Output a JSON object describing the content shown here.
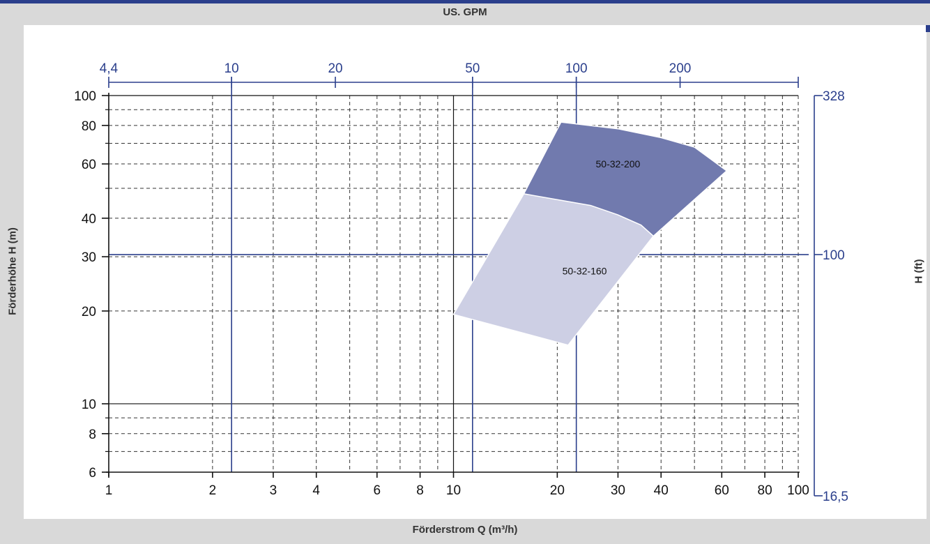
{
  "chart_data": {
    "type": "area",
    "title": "",
    "xlabel": "Förderstrom Q (m³/h)",
    "ylabel": "Förderhöhe H (m)",
    "x2label": "US. GPM",
    "y2label": "H (ft)",
    "xscale": "log",
    "yscale": "log",
    "xlim": [
      1,
      100
    ],
    "ylim": [
      6,
      100
    ],
    "x_ticks": [
      1,
      2,
      3,
      4,
      6,
      8,
      10,
      20,
      30,
      40,
      60,
      80,
      100
    ],
    "y_ticks": [
      6,
      8,
      10,
      20,
      30,
      40,
      60,
      80,
      100
    ],
    "x2_ticks": [
      "4,4",
      "10",
      "20",
      "50",
      "100",
      "200"
    ],
    "y2_ticks": [
      "16,5",
      "100",
      "328"
    ],
    "grid": true,
    "series": [
      {
        "name": "50-32-200",
        "points": [
          [
            16,
            48
          ],
          [
            20.5,
            82
          ],
          [
            30,
            78
          ],
          [
            40,
            73
          ],
          [
            50,
            68
          ],
          [
            62,
            57
          ],
          [
            38,
            35
          ]
        ]
      },
      {
        "name": "50-32-160",
        "points": [
          [
            16,
            48
          ],
          [
            25,
            44
          ],
          [
            30,
            41
          ],
          [
            35,
            38
          ],
          [
            38,
            35
          ],
          [
            21.5,
            15.5
          ],
          [
            10,
            19.5
          ]
        ]
      }
    ],
    "colors": {
      "axis_secondary": "#2b3f8c",
      "series_1": "#717aae",
      "series_2": "#cdcfe4",
      "frame": "#2b3f8c"
    }
  }
}
